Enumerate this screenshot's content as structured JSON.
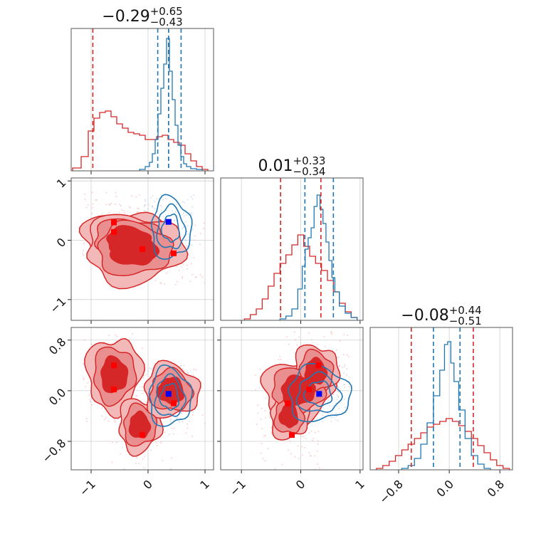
{
  "chart_data": {
    "type": "corner",
    "colors": {
      "red": "#d62728",
      "blue": "#1f77b4",
      "marker_red": "#ff0000",
      "marker_blue": "#0000ff"
    },
    "parameters": [
      {
        "title": {
          "median": "−0.29",
          "plus": "+0.65",
          "minus": "−0.43"
        }
      },
      {
        "title": {
          "median": "0.01",
          "plus": "+0.33",
          "minus": "−0.34"
        }
      },
      {
        "title": {
          "median": "−0.08",
          "plus": "+0.44",
          "minus": "−0.51"
        }
      }
    ],
    "axes": {
      "p0": {
        "range": [
          -1.35,
          1.15
        ],
        "ticks": [
          -1,
          0,
          1
        ],
        "tick_labels": [
          "−1",
          "0",
          "1"
        ]
      },
      "p1": {
        "range": [
          -1.35,
          1.05
        ],
        "ticks": [
          -1,
          0,
          1
        ],
        "tick_labels": [
          "−1",
          "0",
          "1"
        ]
      },
      "p2": {
        "range": [
          -1.25,
          1.0
        ],
        "ticks": [
          -0.8,
          0.0,
          0.8
        ],
        "tick_labels": [
          "−0.8",
          "0.0",
          "0.8"
        ]
      }
    },
    "quantile_lines": {
      "p0": {
        "red": [
          -0.97,
          0.36
        ],
        "blue": [
          0.17,
          0.36,
          0.58
        ]
      },
      "p1": {
        "red": [
          -0.34,
          0.34
        ],
        "blue": [
          0.07,
          0.55
        ]
      },
      "p2": {
        "red": [
          -0.6,
          0.38
        ],
        "blue": [
          -0.25,
          0.17
        ]
      }
    },
    "histograms": {
      "p0": {
        "blue": {
          "centers": [
            -0.1,
            0.0,
            0.05,
            0.1,
            0.15,
            0.2,
            0.25,
            0.3,
            0.35,
            0.4,
            0.45,
            0.5,
            0.55,
            0.6,
            0.65,
            0.7,
            0.8,
            0.9
          ],
          "heights": [
            0.01,
            0.03,
            0.06,
            0.12,
            0.22,
            0.4,
            0.58,
            0.75,
            0.93,
            0.7,
            0.5,
            0.32,
            0.18,
            0.1,
            0.05,
            0.03,
            0.015,
            0.01
          ]
        },
        "red": {
          "centers": [
            -1.25,
            -1.1,
            -1.0,
            -0.9,
            -0.8,
            -0.7,
            -0.6,
            -0.5,
            -0.4,
            -0.3,
            -0.2,
            -0.1,
            0.0,
            0.1,
            0.2,
            0.3,
            0.4,
            0.5,
            0.6,
            0.7,
            0.8,
            0.9,
            1.0
          ],
          "heights": [
            0.02,
            0.1,
            0.28,
            0.37,
            0.41,
            0.42,
            0.38,
            0.33,
            0.3,
            0.27,
            0.26,
            0.25,
            0.22,
            0.22,
            0.24,
            0.25,
            0.22,
            0.2,
            0.18,
            0.12,
            0.07,
            0.03,
            0.01
          ]
        }
      },
      "p1": {
        "blue": {
          "centers": [
            -0.3,
            -0.2,
            -0.1,
            0.0,
            0.05,
            0.1,
            0.15,
            0.2,
            0.25,
            0.3,
            0.35,
            0.4,
            0.45,
            0.5,
            0.55,
            0.6,
            0.7,
            0.8,
            0.9
          ],
          "heights": [
            0.01,
            0.03,
            0.08,
            0.22,
            0.38,
            0.5,
            0.58,
            0.65,
            0.8,
            0.88,
            0.78,
            0.68,
            0.55,
            0.42,
            0.3,
            0.2,
            0.1,
            0.05,
            0.02
          ]
        },
        "red": {
          "centers": [
            -0.9,
            -0.8,
            -0.7,
            -0.6,
            -0.5,
            -0.4,
            -0.3,
            -0.2,
            -0.1,
            0.0,
            0.1,
            0.2,
            0.3,
            0.4,
            0.5,
            0.6,
            0.7,
            0.8,
            0.9
          ],
          "heights": [
            0.01,
            0.04,
            0.08,
            0.15,
            0.24,
            0.33,
            0.4,
            0.46,
            0.53,
            0.6,
            0.52,
            0.45,
            0.4,
            0.35,
            0.28,
            0.2,
            0.12,
            0.06,
            0.02
          ]
        }
      },
      "p2": {
        "blue": {
          "centers": [
            -0.7,
            -0.6,
            -0.5,
            -0.4,
            -0.3,
            -0.2,
            -0.1,
            -0.05,
            0.0,
            0.05,
            0.1,
            0.2,
            0.3,
            0.4,
            0.5,
            0.6
          ],
          "heights": [
            0.01,
            0.03,
            0.08,
            0.18,
            0.33,
            0.52,
            0.7,
            0.88,
            0.9,
            0.75,
            0.62,
            0.42,
            0.22,
            0.1,
            0.04,
            0.01
          ]
        },
        "red": {
          "centers": [
            -1.1,
            -1.0,
            -0.9,
            -0.8,
            -0.7,
            -0.6,
            -0.5,
            -0.4,
            -0.3,
            -0.2,
            -0.1,
            0.0,
            0.1,
            0.2,
            0.3,
            0.4,
            0.5,
            0.6,
            0.7,
            0.8,
            0.9
          ],
          "heights": [
            0.01,
            0.03,
            0.06,
            0.1,
            0.14,
            0.18,
            0.22,
            0.26,
            0.3,
            0.32,
            0.34,
            0.36,
            0.34,
            0.31,
            0.27,
            0.22,
            0.17,
            0.12,
            0.07,
            0.03,
            0.01
          ]
        }
      }
    },
    "red_modes": [
      [
        -0.6,
        0.3,
        0.4
      ],
      [
        -0.6,
        0.14,
        0.02
      ],
      [
        -0.1,
        -0.15,
        -0.7
      ],
      [
        0.45,
        -0.22,
        -0.2
      ]
    ],
    "blue_mode": [
      0.36,
      0.31,
      -0.05
    ]
  }
}
